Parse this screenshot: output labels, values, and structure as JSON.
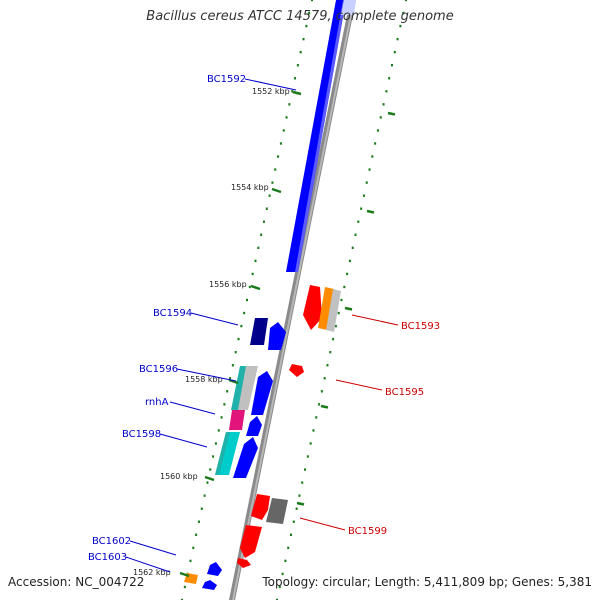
{
  "title": "Bacillus cereus ATCC 14579, complete genome",
  "footer": {
    "accession": "Accession: NC_004722",
    "summary": "Topology: circular; Length: 5,411,809 bp; Genes: 5,381"
  },
  "colors": {
    "background": "#ffffff",
    "backbone": "#888888",
    "tick": "#1a7a1a",
    "label_forward": "#0000cc",
    "label_reverse": "#cc0000"
  },
  "ticks": [
    {
      "label": "1552 kbp"
    },
    {
      "label": "1554 kbp"
    },
    {
      "label": "1556 kbp"
    },
    {
      "label": "1558 kbp"
    },
    {
      "label": "1560 kbp"
    },
    {
      "label": "1562 kbp"
    }
  ],
  "gene_labels": [
    {
      "text": "BC1592",
      "strand": "forward"
    },
    {
      "text": "BC1594",
      "strand": "forward"
    },
    {
      "text": "BC1596",
      "strand": "forward"
    },
    {
      "text": "rnhA",
      "strand": "forward"
    },
    {
      "text": "BC1598",
      "strand": "forward"
    },
    {
      "text": "BC1602",
      "strand": "forward"
    },
    {
      "text": "BC1603",
      "strand": "forward"
    },
    {
      "text": "BC1593",
      "strand": "reverse"
    },
    {
      "text": "BC1595",
      "strand": "reverse"
    },
    {
      "text": "BC1599",
      "strand": "reverse"
    }
  ],
  "feature_colors": [
    "#0000ff",
    "#00008b",
    "#20b2aa",
    "#00cccc",
    "#e0147a",
    "#ff0000",
    "#ff8c00",
    "#666666",
    "#c0c0c0"
  ]
}
